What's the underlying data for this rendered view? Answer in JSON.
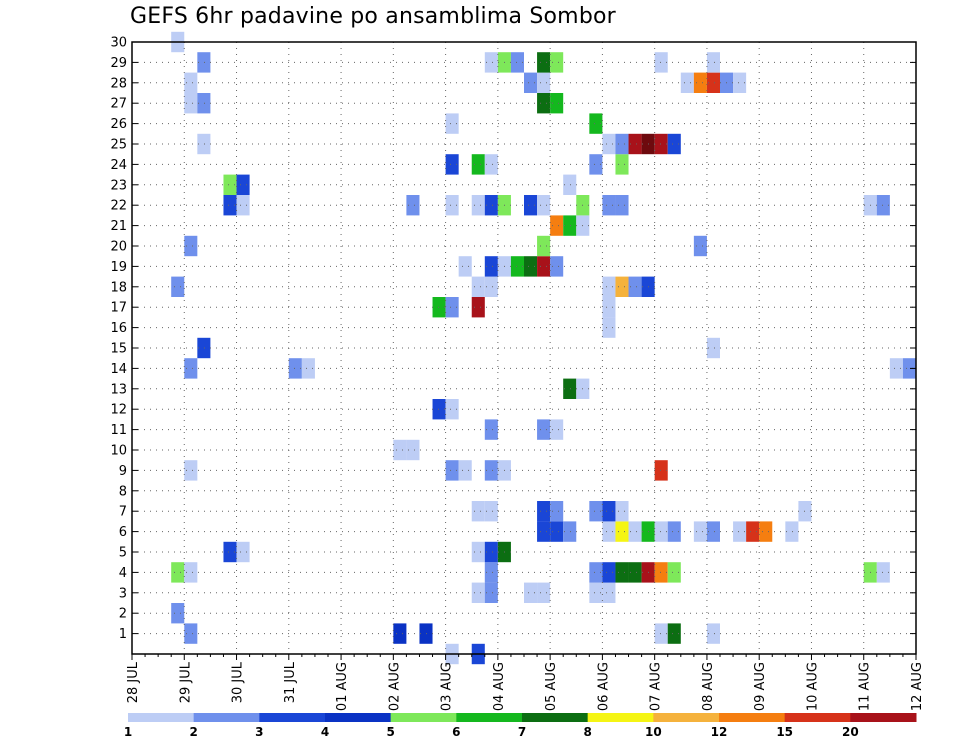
{
  "chart_data": {
    "type": "heatmap",
    "title": "GEFS 6hr padavine po ansamblima Sombor",
    "x_tick_labels": [
      "28 JUL",
      "29 JUL",
      "30 JUL",
      "31 JUL",
      "01 AUG",
      "02 AUG",
      "03 AUG",
      "04 AUG",
      "05 AUG",
      "06 AUG",
      "07 AUG",
      "08 AUG",
      "09 AUG",
      "10 AUG",
      "11 AUG",
      "12 AUG"
    ],
    "y_tick_labels": [
      "1",
      "2",
      "3",
      "4",
      "5",
      "6",
      "7",
      "8",
      "9",
      "10",
      "11",
      "12",
      "13",
      "14",
      "15",
      "16",
      "17",
      "18",
      "19",
      "20",
      "21",
      "22",
      "23",
      "24",
      "25",
      "26",
      "27",
      "28",
      "29",
      "30"
    ],
    "x_steps_per_day": 4,
    "xlim_steps": [
      0,
      60
    ],
    "ylim": [
      0,
      30
    ],
    "grid": true,
    "colorbar": {
      "levels": [
        "1",
        "2",
        "3",
        "4",
        "5",
        "6",
        "7",
        "8",
        "10",
        "12",
        "15",
        "20"
      ],
      "colors": [
        "#bdcdf5",
        "#6f90ec",
        "#1a46d6",
        "#0a32c4",
        "#7ee85a",
        "#14b81e",
        "#0c6e12",
        "#f5f514",
        "#f5b23c",
        "#f57e10",
        "#d6321a",
        "#a8121a",
        "#6e0a0e"
      ]
    },
    "cells": [
      {
        "step": 4,
        "member": 1,
        "c": 1
      },
      {
        "step": 20,
        "member": 1,
        "c": 3
      },
      {
        "step": 22,
        "member": 1,
        "c": 3
      },
      {
        "step": 40,
        "member": 1,
        "c": 0
      },
      {
        "step": 41,
        "member": 1,
        "c": 6
      },
      {
        "step": 44,
        "member": 1,
        "c": 0
      },
      {
        "step": 3,
        "member": 2,
        "c": 1
      },
      {
        "step": 26,
        "member": 3,
        "c": 0
      },
      {
        "step": 27,
        "member": 3,
        "c": 1
      },
      {
        "step": 30,
        "member": 3,
        "c": 0
      },
      {
        "step": 31,
        "member": 3,
        "c": 0
      },
      {
        "step": 35,
        "member": 3,
        "c": 0
      },
      {
        "step": 36,
        "member": 3,
        "c": 0
      },
      {
        "step": 3,
        "member": 4,
        "c": 4
      },
      {
        "step": 4,
        "member": 4,
        "c": 0
      },
      {
        "step": 27,
        "member": 4,
        "c": 1
      },
      {
        "step": 35,
        "member": 4,
        "c": 1
      },
      {
        "step": 36,
        "member": 4,
        "c": 2
      },
      {
        "step": 37,
        "member": 4,
        "c": 6
      },
      {
        "step": 38,
        "member": 4,
        "c": 6
      },
      {
        "step": 39,
        "member": 4,
        "c": 11
      },
      {
        "step": 40,
        "member": 4,
        "c": 9
      },
      {
        "step": 41,
        "member": 4,
        "c": 4
      },
      {
        "step": 56,
        "member": 4,
        "c": 4
      },
      {
        "step": 57,
        "member": 4,
        "c": 0
      },
      {
        "step": 7,
        "member": 5,
        "c": 2
      },
      {
        "step": 8,
        "member": 5,
        "c": 0
      },
      {
        "step": 26,
        "member": 5,
        "c": 0
      },
      {
        "step": 27,
        "member": 5,
        "c": 2
      },
      {
        "step": 28,
        "member": 5,
        "c": 6
      },
      {
        "step": 31,
        "member": 6,
        "c": 2
      },
      {
        "step": 32,
        "member": 6,
        "c": 2
      },
      {
        "step": 33,
        "member": 6,
        "c": 1
      },
      {
        "step": 36,
        "member": 6,
        "c": 0
      },
      {
        "step": 37,
        "member": 6,
        "c": 7
      },
      {
        "step": 38,
        "member": 6,
        "c": 0
      },
      {
        "step": 39,
        "member": 6,
        "c": 5
      },
      {
        "step": 40,
        "member": 6,
        "c": 0
      },
      {
        "step": 41,
        "member": 6,
        "c": 1
      },
      {
        "step": 43,
        "member": 6,
        "c": 0
      },
      {
        "step": 44,
        "member": 6,
        "c": 1
      },
      {
        "step": 46,
        "member": 6,
        "c": 0
      },
      {
        "step": 47,
        "member": 6,
        "c": 10
      },
      {
        "step": 48,
        "member": 6,
        "c": 9
      },
      {
        "step": 50,
        "member": 6,
        "c": 0
      },
      {
        "step": 26,
        "member": 7,
        "c": 0
      },
      {
        "step": 27,
        "member": 7,
        "c": 0
      },
      {
        "step": 31,
        "member": 7,
        "c": 2
      },
      {
        "step": 32,
        "member": 7,
        "c": 1
      },
      {
        "step": 35,
        "member": 7,
        "c": 1
      },
      {
        "step": 36,
        "member": 7,
        "c": 2
      },
      {
        "step": 37,
        "member": 7,
        "c": 0
      },
      {
        "step": 51,
        "member": 7,
        "c": 0
      },
      {
        "step": 4,
        "member": 9,
        "c": 0
      },
      {
        "step": 24,
        "member": 9,
        "c": 1
      },
      {
        "step": 25,
        "member": 9,
        "c": 0
      },
      {
        "step": 27,
        "member": 9,
        "c": 1
      },
      {
        "step": 28,
        "member": 9,
        "c": 0
      },
      {
        "step": 40,
        "member": 9,
        "c": 10
      },
      {
        "step": 20,
        "member": 10,
        "c": 0
      },
      {
        "step": 21,
        "member": 10,
        "c": 0
      },
      {
        "step": 27,
        "member": 11,
        "c": 1
      },
      {
        "step": 31,
        "member": 11,
        "c": 1
      },
      {
        "step": 32,
        "member": 11,
        "c": 0
      },
      {
        "step": 23,
        "member": 12,
        "c": 2
      },
      {
        "step": 24,
        "member": 12,
        "c": 0
      },
      {
        "step": 33,
        "member": 13,
        "c": 6
      },
      {
        "step": 34,
        "member": 13,
        "c": 0
      },
      {
        "step": 4,
        "member": 14,
        "c": 1
      },
      {
        "step": 12,
        "member": 14,
        "c": 1
      },
      {
        "step": 13,
        "member": 14,
        "c": 0
      },
      {
        "step": 58,
        "member": 14,
        "c": 0
      },
      {
        "step": 59,
        "member": 14,
        "c": 1
      },
      {
        "step": 5,
        "member": 15,
        "c": 2
      },
      {
        "step": 44,
        "member": 15,
        "c": 0
      },
      {
        "step": 36,
        "member": 16,
        "c": 0
      },
      {
        "step": 23,
        "member": 17,
        "c": 5
      },
      {
        "step": 24,
        "member": 17,
        "c": 1
      },
      {
        "step": 26,
        "member": 17,
        "c": 11
      },
      {
        "step": 36,
        "member": 17,
        "c": 0
      },
      {
        "step": 3,
        "member": 18,
        "c": 1
      },
      {
        "step": 26,
        "member": 18,
        "c": 0
      },
      {
        "step": 27,
        "member": 18,
        "c": 0
      },
      {
        "step": 36,
        "member": 18,
        "c": 0
      },
      {
        "step": 37,
        "member": 18,
        "c": 8
      },
      {
        "step": 38,
        "member": 18,
        "c": 1
      },
      {
        "step": 39,
        "member": 18,
        "c": 2
      },
      {
        "step": 25,
        "member": 19,
        "c": 0
      },
      {
        "step": 27,
        "member": 19,
        "c": 2
      },
      {
        "step": 28,
        "member": 19,
        "c": 0
      },
      {
        "step": 29,
        "member": 19,
        "c": 5
      },
      {
        "step": 30,
        "member": 19,
        "c": 6
      },
      {
        "step": 31,
        "member": 19,
        "c": 11
      },
      {
        "step": 32,
        "member": 19,
        "c": 1
      },
      {
        "step": 4,
        "member": 20,
        "c": 1
      },
      {
        "step": 31,
        "member": 20,
        "c": 4
      },
      {
        "step": 43,
        "member": 20,
        "c": 1
      },
      {
        "step": 32,
        "member": 21,
        "c": 9
      },
      {
        "step": 33,
        "member": 21,
        "c": 5
      },
      {
        "step": 34,
        "member": 21,
        "c": 0
      },
      {
        "step": 7,
        "member": 22,
        "c": 2
      },
      {
        "step": 8,
        "member": 22,
        "c": 0
      },
      {
        "step": 21,
        "member": 22,
        "c": 1
      },
      {
        "step": 24,
        "member": 22,
        "c": 0
      },
      {
        "step": 26,
        "member": 22,
        "c": 0
      },
      {
        "step": 27,
        "member": 22,
        "c": 2
      },
      {
        "step": 28,
        "member": 22,
        "c": 4
      },
      {
        "step": 30,
        "member": 22,
        "c": 2
      },
      {
        "step": 31,
        "member": 22,
        "c": 0
      },
      {
        "step": 34,
        "member": 22,
        "c": 4
      },
      {
        "step": 36,
        "member": 22,
        "c": 1
      },
      {
        "step": 37,
        "member": 22,
        "c": 1
      },
      {
        "step": 56,
        "member": 22,
        "c": 0
      },
      {
        "step": 57,
        "member": 22,
        "c": 1
      },
      {
        "step": 7,
        "member": 23,
        "c": 4
      },
      {
        "step": 8,
        "member": 23,
        "c": 2
      },
      {
        "step": 33,
        "member": 23,
        "c": 0
      },
      {
        "step": 24,
        "member": 24,
        "c": 2
      },
      {
        "step": 26,
        "member": 24,
        "c": 5
      },
      {
        "step": 27,
        "member": 24,
        "c": 0
      },
      {
        "step": 35,
        "member": 24,
        "c": 1
      },
      {
        "step": 37,
        "member": 24,
        "c": 4
      },
      {
        "step": 5,
        "member": 25,
        "c": 0
      },
      {
        "step": 36,
        "member": 25,
        "c": 0
      },
      {
        "step": 37,
        "member": 25,
        "c": 1
      },
      {
        "step": 38,
        "member": 25,
        "c": 11
      },
      {
        "step": 39,
        "member": 25,
        "c": 12
      },
      {
        "step": 40,
        "member": 25,
        "c": 11
      },
      {
        "step": 41,
        "member": 25,
        "c": 2
      },
      {
        "step": 24,
        "member": 26,
        "c": 0
      },
      {
        "step": 35,
        "member": 26,
        "c": 5
      },
      {
        "step": 4,
        "member": 27,
        "c": 0
      },
      {
        "step": 5,
        "member": 27,
        "c": 1
      },
      {
        "step": 31,
        "member": 27,
        "c": 6
      },
      {
        "step": 32,
        "member": 27,
        "c": 5
      },
      {
        "step": 4,
        "member": 28,
        "c": 0
      },
      {
        "step": 30,
        "member": 28,
        "c": 1
      },
      {
        "step": 31,
        "member": 28,
        "c": 0
      },
      {
        "step": 42,
        "member": 28,
        "c": 0
      },
      {
        "step": 43,
        "member": 28,
        "c": 9
      },
      {
        "step": 44,
        "member": 28,
        "c": 10
      },
      {
        "step": 45,
        "member": 28,
        "c": 1
      },
      {
        "step": 46,
        "member": 28,
        "c": 0
      },
      {
        "step": 5,
        "member": 29,
        "c": 1
      },
      {
        "step": 27,
        "member": 29,
        "c": 0
      },
      {
        "step": 28,
        "member": 29,
        "c": 4
      },
      {
        "step": 29,
        "member": 29,
        "c": 1
      },
      {
        "step": 31,
        "member": 29,
        "c": 6
      },
      {
        "step": 32,
        "member": 29,
        "c": 4
      },
      {
        "step": 40,
        "member": 29,
        "c": 0
      },
      {
        "step": 44,
        "member": 29,
        "c": 0
      },
      {
        "step": 3,
        "member": 30,
        "c": 0
      },
      {
        "step": 24,
        "member": 0,
        "c": 0
      },
      {
        "step": 26,
        "member": 0,
        "c": 2
      }
    ]
  }
}
